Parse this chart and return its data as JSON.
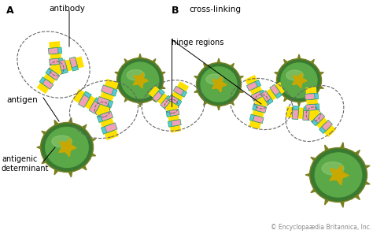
{
  "bg_color": "#ffffff",
  "label_A": "A",
  "label_B": "B",
  "label_antibody": "antibody",
  "label_antigen": "antigen",
  "label_antigenic": "antigenic\ndeterminant",
  "label_hinge": "hinge regions",
  "label_cross": "cross-linking",
  "label_copyright": "© Encyclopaædia Britannica, Inc.",
  "colors": {
    "yellow": "#FFE000",
    "cyan": "#5BC8D8",
    "pink": "#F0A0B8",
    "green_dark": "#3A7A30",
    "green_mid": "#5AA848",
    "green_light": "#8DC870",
    "olive": "#7A8020",
    "star_yellow": "#C8A800",
    "outline": "#20A060",
    "dashed": "#666666"
  }
}
